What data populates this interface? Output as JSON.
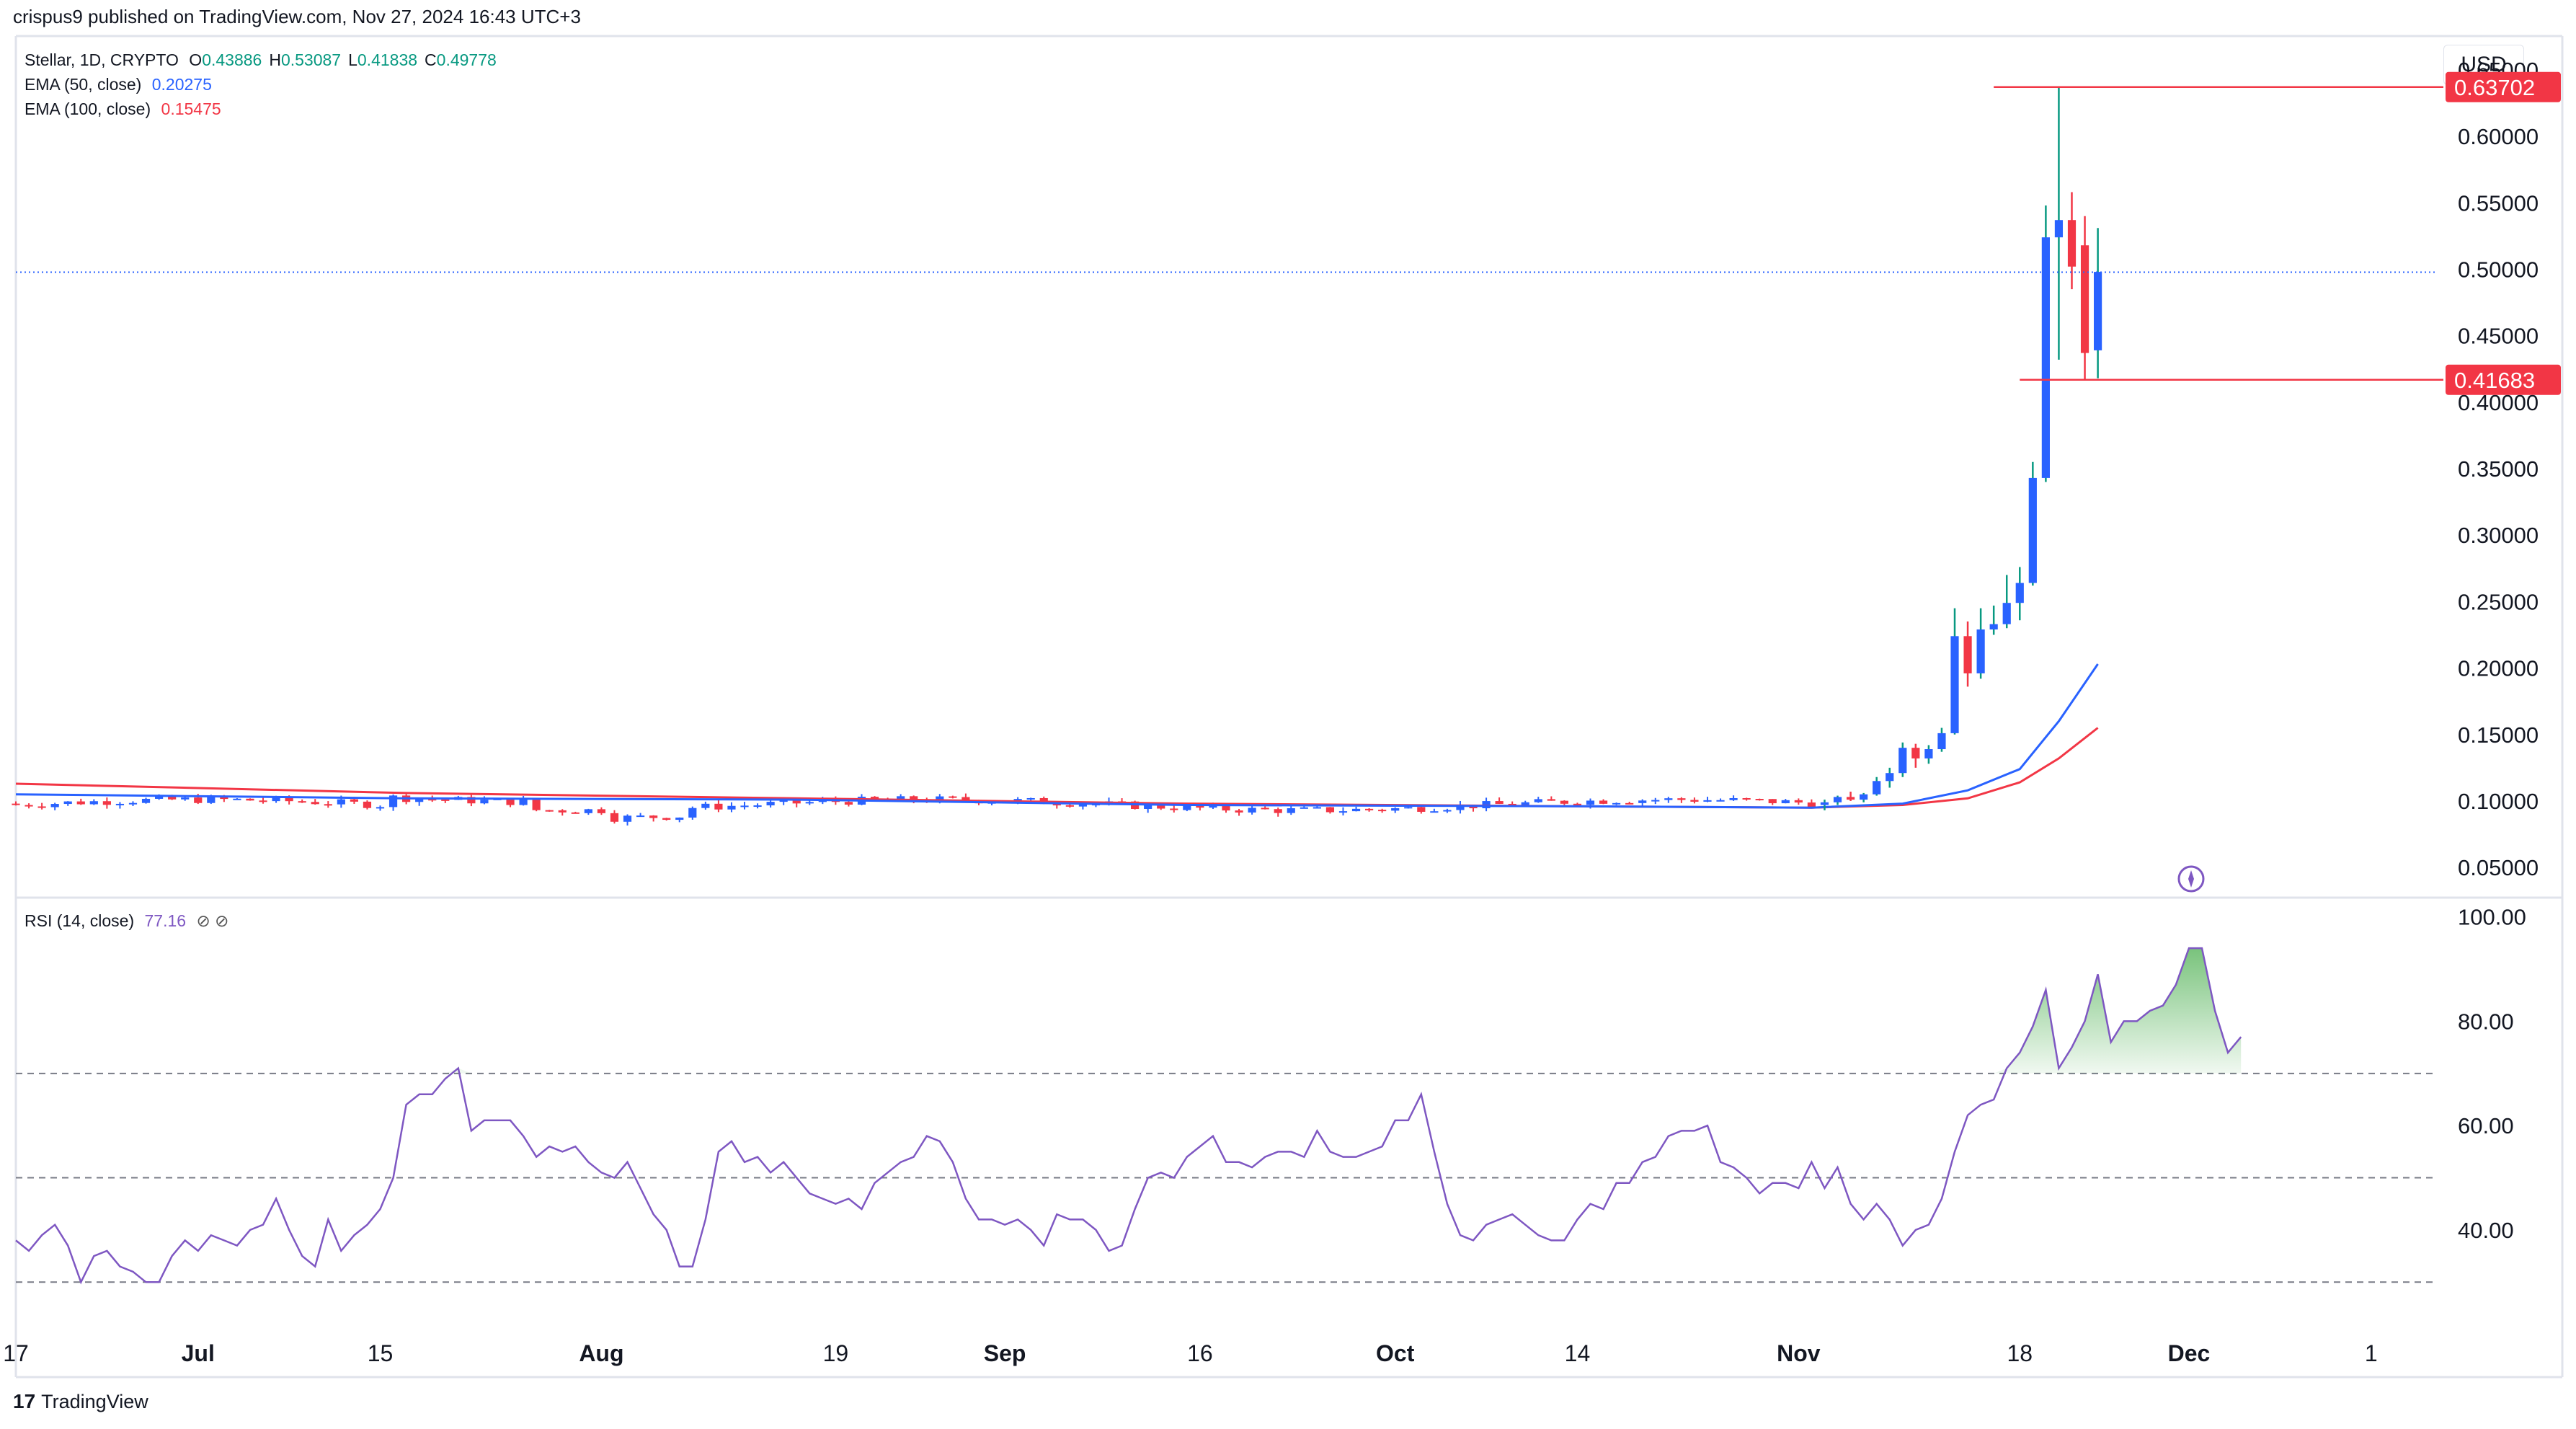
{
  "header": {
    "published": "crispus9 published on TradingView.com, Nov 27, 2024 16:43 UTC+3"
  },
  "legend": {
    "symbol": "Stellar, 1D, CRYPTO",
    "ohlc": [
      {
        "label": "O",
        "value": "0.43886"
      },
      {
        "label": "H",
        "value": "0.53087"
      },
      {
        "label": "L",
        "value": "0.41838"
      },
      {
        "label": "C",
        "value": "0.49778"
      }
    ],
    "ema50_label": "EMA (50, close)",
    "ema50_value": "0.20275",
    "ema100_label": "EMA (100, close)",
    "ema100_value": "0.15475",
    "rsi_label": "RSI (14, close)",
    "rsi_value": "77.16",
    "rsi_icons": "⊘ ⊘"
  },
  "currency": "USD",
  "footer": {
    "brand": "TradingView"
  },
  "colors": {
    "up": "#2962ff",
    "down": "#f23645",
    "ema50": "#2962ff",
    "ema100": "#f23645",
    "rsi": "#7e57c2",
    "rsi_fill": "#4caf50",
    "price_line": "#2962ff"
  },
  "chart_data": {
    "type": "candlestick",
    "price_axis": {
      "ticks": [
        "0.65000",
        "0.60000",
        "0.55000",
        "0.50000",
        "0.45000",
        "0.40000",
        "0.35000",
        "0.30000",
        "0.25000",
        "0.20000",
        "0.15000",
        "0.10000",
        "0.05000"
      ],
      "tick_values": [
        0.65,
        0.6,
        0.55,
        0.5,
        0.45,
        0.4,
        0.35,
        0.3,
        0.25,
        0.2,
        0.15,
        0.1,
        0.05
      ],
      "range": [
        0.03,
        0.67
      ]
    },
    "price_labels": [
      {
        "value": 0.63702,
        "text": "0.63702"
      },
      {
        "value": 0.41683,
        "text": "0.41683"
      }
    ],
    "current_price": 0.49778,
    "x_axis": {
      "labels": [
        "17",
        "Jul",
        "15",
        "Aug",
        "19",
        "Sep",
        "16",
        "Oct",
        "14",
        "Nov",
        "18",
        "Dec",
        "1"
      ],
      "label_days": [
        0,
        14,
        28,
        45,
        63,
        76,
        91,
        106,
        120,
        137,
        154,
        167,
        181
      ]
    },
    "candles_recent": [
      {
        "day": 139,
        "o": 0.097,
        "h": 0.101,
        "l": 0.093,
        "c": 0.099
      },
      {
        "day": 140,
        "o": 0.099,
        "h": 0.104,
        "l": 0.097,
        "c": 0.103
      },
      {
        "day": 141,
        "o": 0.103,
        "h": 0.107,
        "l": 0.1,
        "c": 0.101
      },
      {
        "day": 142,
        "o": 0.101,
        "h": 0.106,
        "l": 0.099,
        "c": 0.105
      },
      {
        "day": 143,
        "o": 0.105,
        "h": 0.118,
        "l": 0.104,
        "c": 0.115
      },
      {
        "day": 144,
        "o": 0.115,
        "h": 0.125,
        "l": 0.11,
        "c": 0.121
      },
      {
        "day": 145,
        "o": 0.121,
        "h": 0.144,
        "l": 0.118,
        "c": 0.14
      },
      {
        "day": 146,
        "o": 0.14,
        "h": 0.143,
        "l": 0.125,
        "c": 0.132
      },
      {
        "day": 147,
        "o": 0.132,
        "h": 0.142,
        "l": 0.128,
        "c": 0.139
      },
      {
        "day": 148,
        "o": 0.139,
        "h": 0.155,
        "l": 0.137,
        "c": 0.151
      },
      {
        "day": 149,
        "o": 0.151,
        "h": 0.245,
        "l": 0.15,
        "c": 0.224
      },
      {
        "day": 150,
        "o": 0.224,
        "h": 0.235,
        "l": 0.186,
        "c": 0.196
      },
      {
        "day": 151,
        "o": 0.196,
        "h": 0.245,
        "l": 0.192,
        "c": 0.229
      },
      {
        "day": 152,
        "o": 0.229,
        "h": 0.247,
        "l": 0.225,
        "c": 0.233
      },
      {
        "day": 153,
        "o": 0.233,
        "h": 0.27,
        "l": 0.23,
        "c": 0.249
      },
      {
        "day": 154,
        "o": 0.249,
        "h": 0.276,
        "l": 0.236,
        "c": 0.264
      },
      {
        "day": 155,
        "o": 0.264,
        "h": 0.355,
        "l": 0.262,
        "c": 0.343
      },
      {
        "day": 156,
        "o": 0.343,
        "h": 0.548,
        "l": 0.34,
        "c": 0.524
      },
      {
        "day": 157,
        "o": 0.524,
        "h": 0.637,
        "l": 0.432,
        "c": 0.537
      },
      {
        "day": 158,
        "o": 0.537,
        "h": 0.558,
        "l": 0.485,
        "c": 0.502
      },
      {
        "day": 159,
        "o": 0.518,
        "h": 0.54,
        "l": 0.417,
        "c": 0.437
      },
      {
        "day": 160,
        "o": 0.439,
        "h": 0.531,
        "l": 0.418,
        "c": 0.498
      }
    ],
    "flat_period_range": [
      0.08,
      0.112
    ],
    "ema50": {
      "name": "EMA (50, close)",
      "points": [
        [
          0,
          0.105
        ],
        [
          30,
          0.102
        ],
        [
          60,
          0.101
        ],
        [
          90,
          0.097
        ],
        [
          120,
          0.096
        ],
        [
          138,
          0.095
        ],
        [
          145,
          0.098
        ],
        [
          150,
          0.108
        ],
        [
          154,
          0.124
        ],
        [
          157,
          0.16
        ],
        [
          160,
          0.203
        ]
      ]
    },
    "ema100": {
      "name": "EMA (100, close)",
      "points": [
        [
          0,
          0.113
        ],
        [
          30,
          0.106
        ],
        [
          60,
          0.102
        ],
        [
          90,
          0.098
        ],
        [
          120,
          0.096
        ],
        [
          138,
          0.095
        ],
        [
          145,
          0.097
        ],
        [
          150,
          0.102
        ],
        [
          154,
          0.114
        ],
        [
          157,
          0.132
        ],
        [
          160,
          0.155
        ]
      ]
    },
    "rsi": {
      "axis_ticks": [
        "100.00",
        "80.00",
        "60.00",
        "40.00"
      ],
      "tick_values": [
        100,
        80,
        60,
        40
      ],
      "range": [
        27,
        103
      ],
      "bands": [
        70,
        50,
        30
      ],
      "values": [
        38,
        36,
        39,
        41,
        37,
        30,
        35,
        36,
        33,
        32,
        30,
        30,
        35,
        38,
        36,
        39,
        38,
        37,
        40,
        41,
        46,
        40,
        35,
        33,
        42,
        36,
        39,
        41,
        44,
        50,
        64,
        66,
        66,
        69,
        71,
        59,
        61,
        61,
        61,
        58,
        54,
        56,
        55,
        56,
        53,
        51,
        50,
        53,
        48,
        43,
        40,
        33,
        33,
        42,
        55,
        57,
        53,
        54,
        51,
        53,
        50,
        47,
        46,
        45,
        46,
        44,
        49,
        51,
        53,
        54,
        58,
        57,
        53,
        46,
        42,
        42,
        41,
        42,
        40,
        37,
        43,
        42,
        42,
        40,
        36,
        37,
        44,
        50,
        51,
        50,
        54,
        56,
        58,
        53,
        53,
        52,
        54,
        55,
        55,
        54,
        59,
        55,
        54,
        54,
        55,
        56,
        61,
        61,
        66,
        55,
        45,
        39,
        38,
        41,
        42,
        43,
        41,
        39,
        38,
        38,
        42,
        45,
        44,
        49,
        49,
        53,
        54,
        58,
        59,
        59,
        60,
        53,
        52,
        50,
        47,
        49,
        49,
        48,
        53,
        48,
        52,
        45,
        42,
        45,
        42,
        37,
        40,
        41,
        46,
        55,
        62,
        64,
        65,
        71,
        74,
        79,
        86,
        71,
        75,
        80,
        89,
        76,
        80,
        80,
        82,
        83,
        87,
        94,
        94,
        82,
        74,
        77
      ]
    }
  }
}
